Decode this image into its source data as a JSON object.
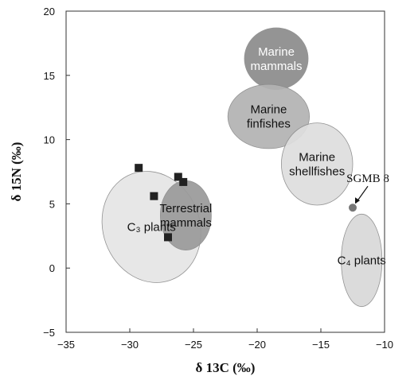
{
  "chart_data": {
    "type": "scatter",
    "xlabel": "δ 13C (‰)",
    "ylabel": "δ 15N (‰)",
    "xlim": [
      -35,
      -10
    ],
    "ylim": [
      -5,
      20
    ],
    "xticks": [
      -35,
      -30,
      -25,
      -20,
      -15,
      -10
    ],
    "yticks": [
      -5,
      0,
      5,
      10,
      15,
      20
    ],
    "grid": false,
    "points": [
      {
        "x": -29.3,
        "y": 7.8
      },
      {
        "x": -28.1,
        "y": 5.6
      },
      {
        "x": -26.2,
        "y": 7.1
      },
      {
        "x": -25.8,
        "y": 6.7
      },
      {
        "x": -27.0,
        "y": 2.4
      }
    ],
    "regions": [
      {
        "label": "C₃ plants",
        "cx": -28.3,
        "cy": 3.2,
        "rx": 3.8,
        "ry": 4.4,
        "rotate": -20,
        "fill": "#e6e6e6",
        "text_color": "#111111"
      },
      {
        "label": "Terrestrial\nmammals",
        "cx": -25.6,
        "cy": 4.1,
        "rx": 2.0,
        "ry": 2.7,
        "rotate": 0,
        "fill": "#9a9a9a",
        "text_color": "#111111"
      },
      {
        "label": "Marine\nmammals",
        "cx": -18.5,
        "cy": 16.3,
        "rx": 2.5,
        "ry": 2.4,
        "rotate": 0,
        "fill": "#8c8c8c",
        "text_color": "#ffffff"
      },
      {
        "label": "Marine\nfinfishes",
        "cx": -19.1,
        "cy": 11.8,
        "rx": 3.2,
        "ry": 2.5,
        "rotate": 0,
        "fill": "#b3b3b3",
        "text_color": "#111111"
      },
      {
        "label": "Marine\nshellfishes",
        "cx": -15.3,
        "cy": 8.1,
        "rx": 2.8,
        "ry": 3.2,
        "rotate": 0,
        "fill": "#dedede",
        "text_color": "#111111"
      },
      {
        "label": "C₄ plants",
        "cx": -11.8,
        "cy": 0.6,
        "rx": 1.6,
        "ry": 3.6,
        "rotate": 0,
        "fill": "#d9d9d9",
        "text_color": "#111111"
      }
    ],
    "highlight": {
      "label": "SGMB 8",
      "x": -12.5,
      "y": 4.7,
      "color": "#777777"
    }
  }
}
